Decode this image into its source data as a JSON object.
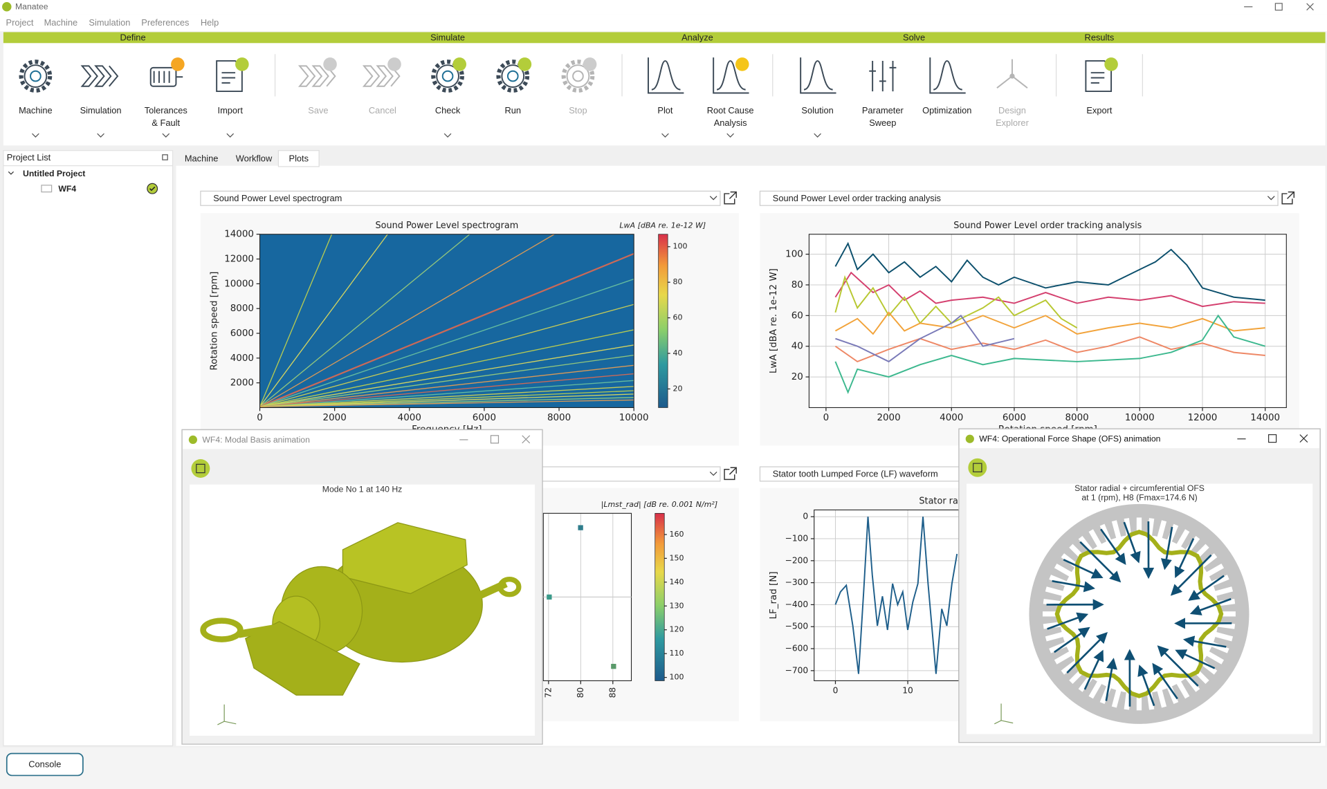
{
  "window": {
    "title": "Manatee"
  },
  "menu": [
    "Project",
    "Machine",
    "Simulation",
    "Preferences",
    "Help"
  ],
  "ribbon": {
    "groups": [
      "Define",
      "Simulate",
      "Analyze",
      "Solve",
      "Results"
    ],
    "buttons": [
      {
        "lines": [
          "Machine"
        ],
        "enabled": true,
        "dropdown": true
      },
      {
        "lines": [
          "Simulation"
        ],
        "enabled": true,
        "dropdown": true
      },
      {
        "lines": [
          "Tolerances",
          "& Fault"
        ],
        "enabled": true,
        "dropdown": true
      },
      {
        "lines": [
          "Import"
        ],
        "enabled": true,
        "dropdown": true
      },
      {
        "lines": [
          "Save"
        ],
        "enabled": false,
        "dropdown": false
      },
      {
        "lines": [
          "Cancel"
        ],
        "enabled": false,
        "dropdown": false
      },
      {
        "lines": [
          "Check"
        ],
        "enabled": true,
        "dropdown": true
      },
      {
        "lines": [
          "Run"
        ],
        "enabled": true,
        "dropdown": false
      },
      {
        "lines": [
          "Stop"
        ],
        "enabled": false,
        "dropdown": false
      },
      {
        "lines": [
          "Plot"
        ],
        "enabled": true,
        "dropdown": true
      },
      {
        "lines": [
          "Root Cause",
          "Analysis"
        ],
        "enabled": true,
        "dropdown": true
      },
      {
        "lines": [
          "Solution"
        ],
        "enabled": true,
        "dropdown": true
      },
      {
        "lines": [
          "Parameter",
          "Sweep"
        ],
        "enabled": true,
        "dropdown": false
      },
      {
        "lines": [
          "Optimization"
        ],
        "enabled": true,
        "dropdown": false
      },
      {
        "lines": [
          "Design",
          "Explorer"
        ],
        "enabled": false,
        "dropdown": false
      },
      {
        "lines": [
          "Export"
        ],
        "enabled": true,
        "dropdown": false
      }
    ]
  },
  "project_list": {
    "title": "Project List",
    "project": "Untitled Project",
    "item": "WF4"
  },
  "tabs": {
    "items": [
      "Machine",
      "Workflow",
      "Plots"
    ],
    "active": 2
  },
  "plots": [
    {
      "dropdown": "Sound Power Level spectrogram",
      "chart": {
        "type": "heatmap",
        "title": "Sound Power Level spectrogram",
        "xlabel": "Frequency [Hz]",
        "ylabel": "Rotation speed [rpm]",
        "xlim": [
          0,
          10000
        ],
        "ylim": [
          0,
          14000
        ],
        "xticks": [
          0,
          2000,
          4000,
          6000,
          8000,
          10000
        ],
        "yticks": [
          2000,
          4000,
          6000,
          8000,
          10000,
          12000,
          14000
        ],
        "colorbar": {
          "label": "LwA [dBA re. 1e-12 W]",
          "lim": [
            9.5,
            107
          ],
          "ticks": [
            20,
            40,
            60,
            80,
            100
          ]
        }
      }
    },
    {
      "dropdown": "Sound Power Level order tracking analysis",
      "chart": {
        "type": "line",
        "title": "Sound Power Level order tracking analysis",
        "xlabel": "Rotation speed [rpm]",
        "ylabel": "LwA [dBA re. 1e-12 W]",
        "xlim": [
          -540,
          14675
        ],
        "ylim": [
          0,
          113
        ],
        "xticks": [
          0,
          2000,
          4000,
          6000,
          8000,
          10000,
          12000,
          14000
        ],
        "yticks": [
          20,
          40,
          60,
          80,
          100
        ],
        "grid": true,
        "series": [
          {
            "color": "#0b4f6c",
            "x": [
              300,
              700,
              1000,
              1500,
              2000,
              2500,
              3000,
              3500,
              4000,
              4500,
              5000,
              5500,
              6000,
              7000,
              8000,
              9000,
              10000,
              10500,
              11000,
              11500,
              12000,
              13000,
              14000
            ],
            "values": [
              92,
              107,
              90,
              100,
              88,
              95,
              85,
              92,
              82,
              96,
              85,
              80,
              85,
              78,
              82,
              80,
              90,
              95,
              103,
              93,
              78,
              72,
              70
            ]
          },
          {
            "color": "#d43f6e",
            "x": [
              300,
              800,
              1500,
              2000,
              2500,
              3000,
              3500,
              4000,
              5000,
              6000,
              7000,
              8000,
              9000,
              10000,
              11000,
              12000,
              13000,
              14000
            ],
            "values": [
              72,
              88,
              75,
              80,
              70,
              76,
              68,
              70,
              72,
              68,
              75,
              68,
              72,
              70,
              73,
              66,
              69,
              68
            ]
          },
          {
            "color": "#b8c832",
            "x": [
              300,
              600,
              1000,
              1500,
              2000,
              2500,
              3000,
              3500,
              4000,
              5000,
              5500,
              6000,
              7000,
              7500,
              8000
            ],
            "values": [
              62,
              85,
              65,
              78,
              60,
              72,
              55,
              66,
              55,
              65,
              72,
              60,
              70,
              58,
              52
            ]
          },
          {
            "color": "#f2a33a",
            "x": [
              300,
              1000,
              1500,
              2000,
              2500,
              3000,
              4000,
              5000,
              6000,
              7000,
              8000,
              9000,
              10000,
              11000,
              12000,
              13000,
              14000
            ],
            "values": [
              50,
              58,
              48,
              62,
              50,
              55,
              52,
              60,
              52,
              60,
              48,
              52,
              55,
              52,
              58,
              50,
              52
            ]
          },
          {
            "color": "#ee8866",
            "x": [
              300,
              1000,
              2000,
              3000,
              4000,
              5000,
              6000,
              7000,
              8000,
              9000,
              10000,
              11000,
              12000,
              13000,
              14000
            ],
            "values": [
              40,
              30,
              38,
              45,
              38,
              42,
              38,
              44,
              36,
              40,
              46,
              38,
              42,
              36,
              34
            ]
          },
          {
            "color": "#3cb88e",
            "x": [
              300,
              700,
              1000,
              2000,
              3000,
              4000,
              5000,
              6000,
              8000,
              10000,
              11000,
              12000,
              12500,
              13000,
              14000
            ],
            "values": [
              30,
              10,
              25,
              20,
              28,
              34,
              28,
              32,
              30,
              32,
              36,
              44,
              60,
              46,
              40
            ]
          },
          {
            "color": "#7a7ab8",
            "x": [
              300,
              1000,
              2000,
              3000,
              4000,
              4300,
              5000,
              6000
            ],
            "values": [
              45,
              40,
              30,
              45,
              55,
              60,
              40,
              45
            ]
          }
        ]
      }
    },
    {
      "chart": {
        "type": "scatter",
        "xlim": [
          70.7,
          92.6
        ],
        "xticks": [
          72,
          80,
          88
        ],
        "grid": true,
        "colorbar": {
          "label": "|Lmst_rad| [dB re. 0.001 N/m²]",
          "lim": [
            98.6,
            168.9
          ],
          "ticks": [
            100,
            110,
            120,
            130,
            140,
            150,
            160
          ]
        }
      }
    },
    {
      "dropdown": "Stator tooth Lumped Force (LF) waveform",
      "chart": {
        "type": "line",
        "title": "Stator rad",
        "ylabel": "LF_rad [N]",
        "xlim": [
          -2.94,
          17.06
        ],
        "ylim": [
          -746,
          30.8
        ],
        "xticks": [
          0,
          10
        ],
        "yticks": [
          0,
          {
            "value": -100,
            "label": "−100"
          },
          {
            "value": -200,
            "label": "−200"
          },
          {
            "value": -300,
            "label": "−300"
          },
          {
            "value": -400,
            "label": "−400"
          },
          {
            "value": -500,
            "label": "−500"
          },
          {
            "value": -600,
            "label": "−600"
          },
          {
            "value": -700,
            "label": "−700"
          }
        ],
        "grid": true,
        "series": [
          {
            "color": "#1f5f8b",
            "x": [
              0,
              0.7,
              1.5,
              2.4,
              3.2,
              3.9,
              4.5,
              5.1,
              5.8,
              6.5,
              7.2,
              7.9,
              8.6,
              9.3,
              10,
              10.7,
              11.4,
              12.1,
              12.8,
              13.9,
              14.7,
              15.4,
              16.1,
              16.8
            ],
            "values": [
              -400,
              -342,
              -312,
              -496,
              -715,
              -342,
              0,
              -265,
              -496,
              -362,
              -515,
              -304,
              -400,
              -342,
              -515,
              -388,
              -304,
              0,
              -304,
              -715,
              -419,
              -496,
              -304,
              -169
            ]
          }
        ]
      }
    }
  ],
  "windows": [
    {
      "title": "WF4: Modal Basis animation",
      "caption": [
        "Mode No 1 at 140 Hz"
      ],
      "active": false
    },
    {
      "title": "WF4: Operational Force Shape (OFS) animation",
      "caption": [
        "Stator radial + circumferential OFS",
        "at 1 (rpm), H8 (Fmax=174.6 N)"
      ],
      "active": true
    }
  ],
  "console": "Console"
}
